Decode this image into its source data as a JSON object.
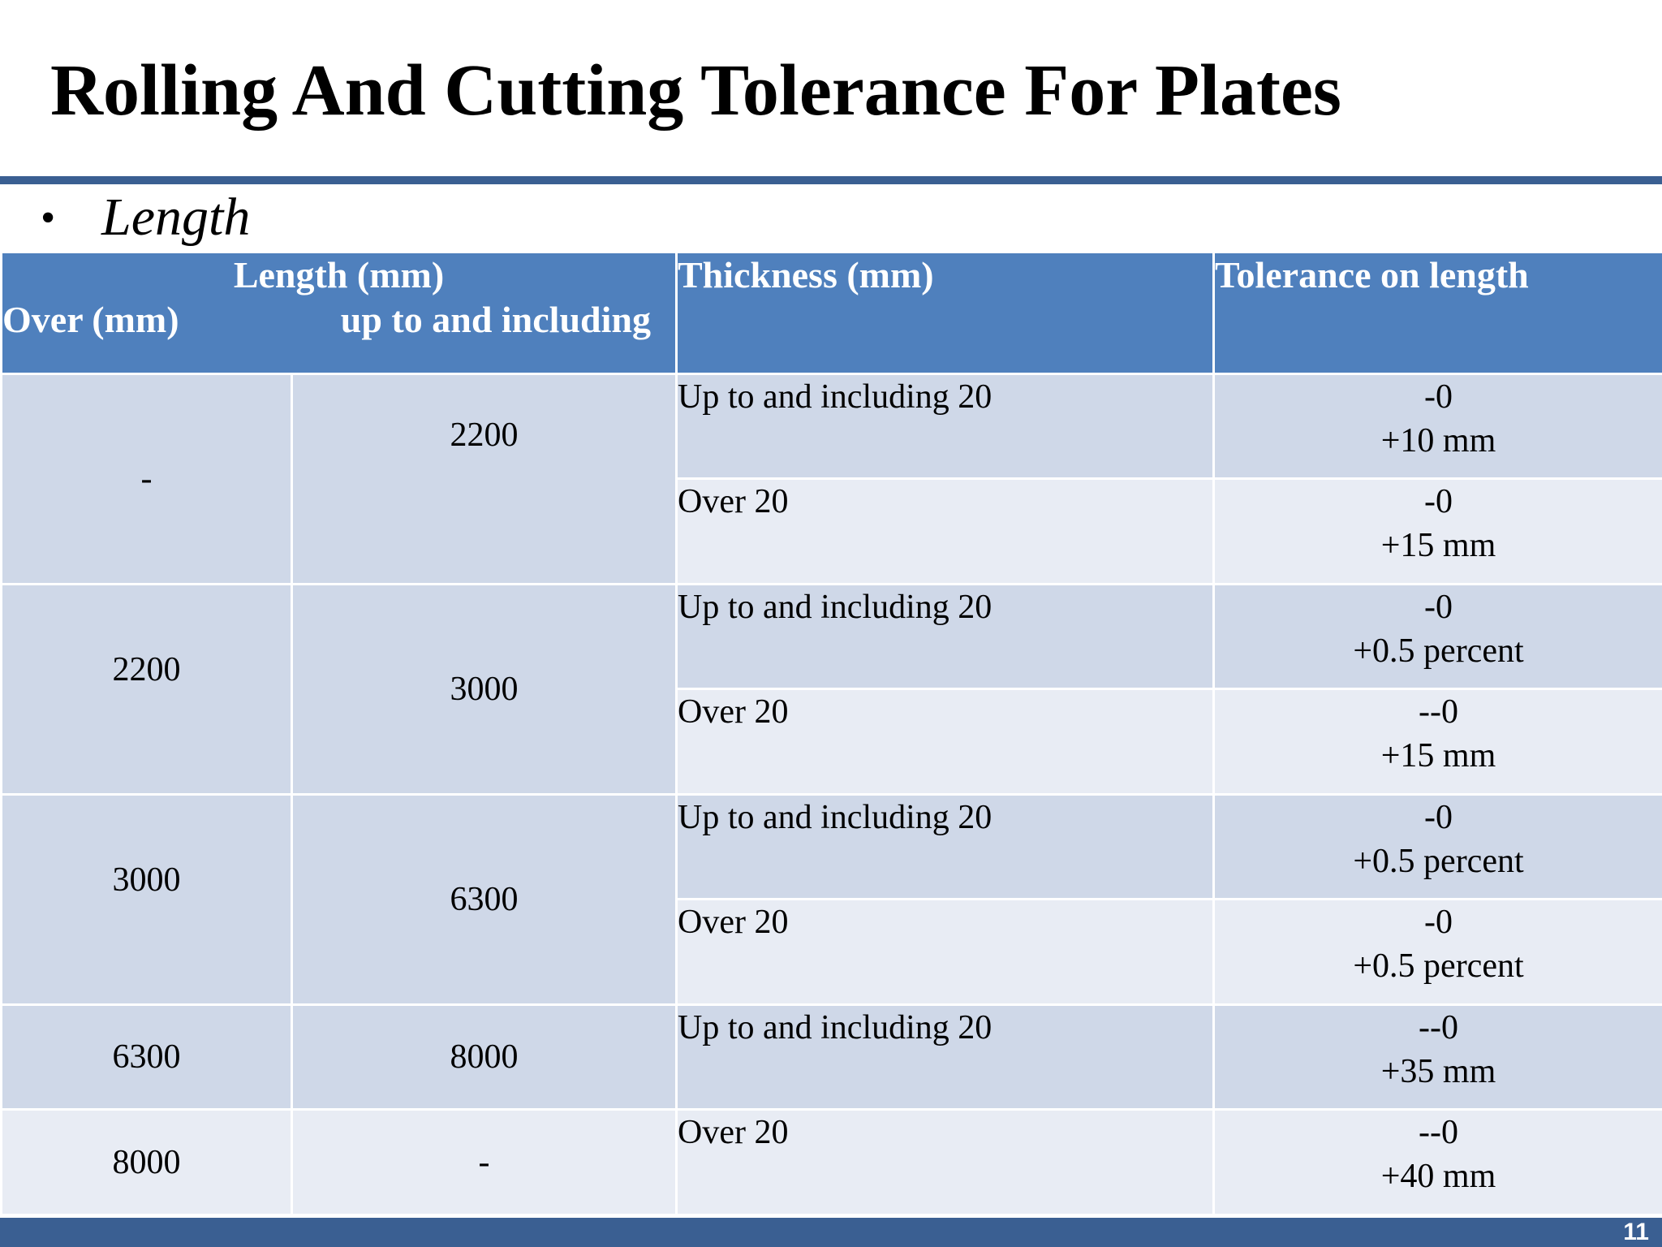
{
  "slide": {
    "title": "Rolling And Cutting Tolerance For Plates",
    "bullet": "Length",
    "page_number": "11"
  },
  "table": {
    "header": {
      "length_group": "Length (mm)",
      "over": "Over (mm)",
      "up_to": "up to and including",
      "thickness": "Thickness (mm)",
      "tolerance": "Tolerance on length"
    },
    "rows": [
      {
        "over": "-",
        "up_to": "2200",
        "sub": [
          {
            "thickness": "Up to and including 20",
            "tol_minus": "-0",
            "tol_plus": "+10 mm"
          },
          {
            "thickness": "Over 20",
            "tol_minus": "-0",
            "tol_plus": "+15 mm"
          }
        ]
      },
      {
        "over": "2200",
        "up_to": "3000",
        "sub": [
          {
            "thickness": "Up to and including 20",
            "tol_minus": "-0",
            "tol_plus": "+0.5 percent"
          },
          {
            "thickness": "Over 20",
            "tol_minus": "--0",
            "tol_plus": "+15 mm"
          }
        ]
      },
      {
        "over": "3000",
        "up_to": "6300",
        "sub": [
          {
            "thickness": "Up to and including 20",
            "tol_minus": "-0",
            "tol_plus": "+0.5 percent"
          },
          {
            "thickness": "Over 20",
            "tol_minus": "-0",
            "tol_plus": "+0.5 percent"
          }
        ]
      },
      {
        "over": "6300",
        "up_to": "8000",
        "sub": [
          {
            "thickness": "Up to and including 20",
            "tol_minus": "--0",
            "tol_plus": "+35 mm"
          }
        ]
      },
      {
        "over": "8000",
        "up_to": "-",
        "sub": [
          {
            "thickness": "Over 20",
            "tol_minus": "--0",
            "tol_plus": "+40 mm"
          }
        ]
      }
    ]
  }
}
